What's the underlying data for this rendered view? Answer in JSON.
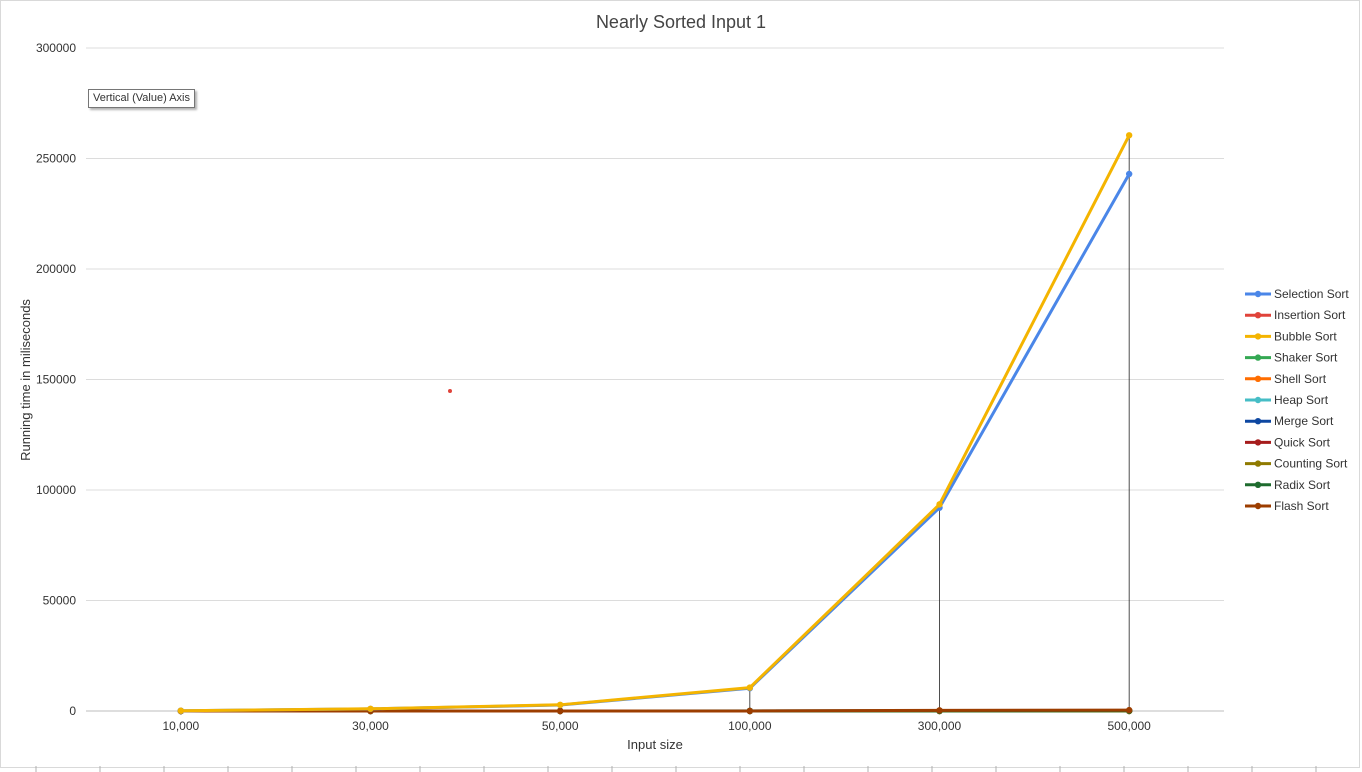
{
  "chart_data": {
    "type": "line",
    "title": "Nearly Sorted Input 1",
    "xlabel": "Input size",
    "ylabel": "Running time in miliseconds",
    "categories": [
      "10,000",
      "30,000",
      "50,000",
      "100,000",
      "300,000",
      "500,000"
    ],
    "y_ticks": [
      "0",
      "50000",
      "100000",
      "150000",
      "200000",
      "250000",
      "300000"
    ],
    "ylim": [
      0,
      300000
    ],
    "grid": true,
    "legend_position": "right",
    "series": [
      {
        "name": "Selection Sort",
        "color": "#4a86e8",
        "values": [
          110,
          950,
          2700,
          10300,
          92000,
          243000
        ]
      },
      {
        "name": "Insertion Sort",
        "color": "#e0433a",
        "values": [
          0,
          0,
          0,
          0,
          0,
          0
        ]
      },
      {
        "name": "Bubble Sort",
        "color": "#f4b400",
        "values": [
          120,
          1000,
          2800,
          10600,
          93500,
          260500
        ]
      },
      {
        "name": "Shaker Sort",
        "color": "#34a853",
        "values": [
          0,
          0,
          0,
          0,
          0,
          0
        ]
      },
      {
        "name": "Shell Sort",
        "color": "#ff6d00",
        "values": [
          1,
          3,
          5,
          10,
          30,
          55
        ]
      },
      {
        "name": "Heap Sort",
        "color": "#46bdc6",
        "values": [
          3,
          8,
          14,
          30,
          100,
          180
        ]
      },
      {
        "name": "Merge Sort",
        "color": "#0d47a1",
        "values": [
          2,
          6,
          10,
          22,
          70,
          120
        ]
      },
      {
        "name": "Quick Sort",
        "color": "#a61c1c",
        "values": [
          1,
          2,
          3,
          6,
          20,
          35
        ]
      },
      {
        "name": "Counting Sort",
        "color": "#8f7a00",
        "values": [
          0,
          0,
          0,
          1,
          3,
          5
        ]
      },
      {
        "name": "Radix Sort",
        "color": "#1e6b2e",
        "values": [
          2,
          5,
          9,
          18,
          60,
          100
        ]
      },
      {
        "name": "Flash Sort",
        "color": "#9c3d00",
        "values": [
          1,
          3,
          5,
          10,
          300,
          400
        ]
      }
    ],
    "tooltip": "Vertical (Value) Axis"
  }
}
